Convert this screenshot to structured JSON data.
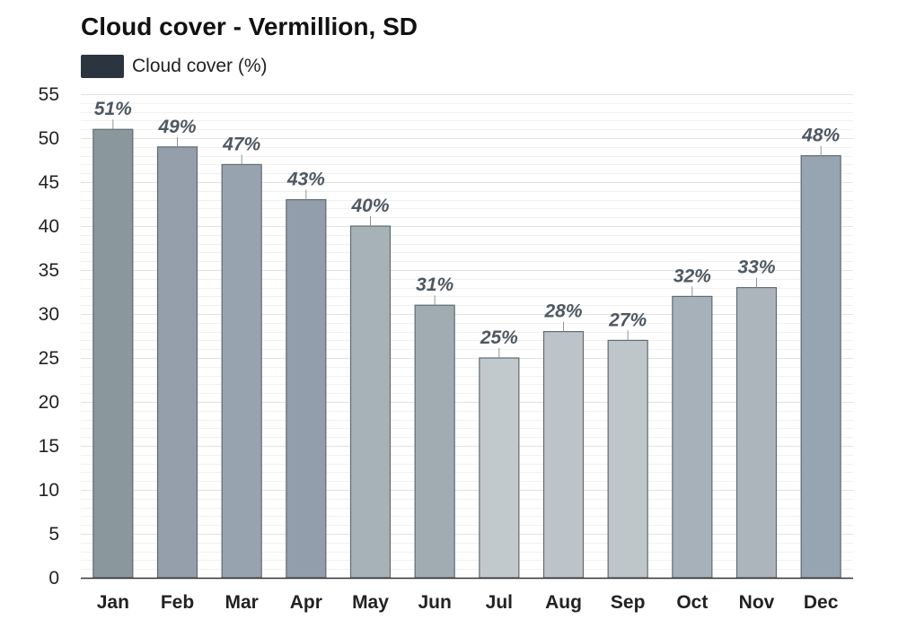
{
  "chart_data": {
    "type": "bar",
    "title": "Cloud cover - Vermillion, SD",
    "legend": {
      "entries": [
        {
          "label": "Cloud cover (%)",
          "color": "#2a3540"
        }
      ],
      "placement": "top-left"
    },
    "categories": [
      "Jan",
      "Feb",
      "Mar",
      "Apr",
      "May",
      "Jun",
      "Jul",
      "Aug",
      "Sep",
      "Oct",
      "Nov",
      "Dec"
    ],
    "series": [
      {
        "name": "Cloud cover (%)",
        "values": [
          51,
          49,
          47,
          43,
          40,
          31,
          25,
          28,
          27,
          32,
          33,
          48
        ],
        "data_labels": [
          "51%",
          "49%",
          "47%",
          "43%",
          "40%",
          "31%",
          "25%",
          "28%",
          "27%",
          "32%",
          "33%",
          "48%"
        ],
        "colors": [
          "#8a979c",
          "#949fab",
          "#97a3ae",
          "#929eab",
          "#a7b1b8",
          "#a1abb2",
          "#c2c9cd",
          "#bcc4c9",
          "#bec6ca",
          "#a7b1b9",
          "#abb5bb",
          "#97a4b1"
        ]
      }
    ],
    "xlabel": "",
    "ylabel": "",
    "ylim": [
      0,
      55
    ],
    "yticks": [
      0,
      5,
      10,
      15,
      20,
      25,
      30,
      35,
      40,
      45,
      50,
      55
    ],
    "grid": true,
    "bar_outline_color": "#5f6b72",
    "grid_color": "#e2e2e2",
    "minor_grid_color": "#f1f1f1"
  }
}
